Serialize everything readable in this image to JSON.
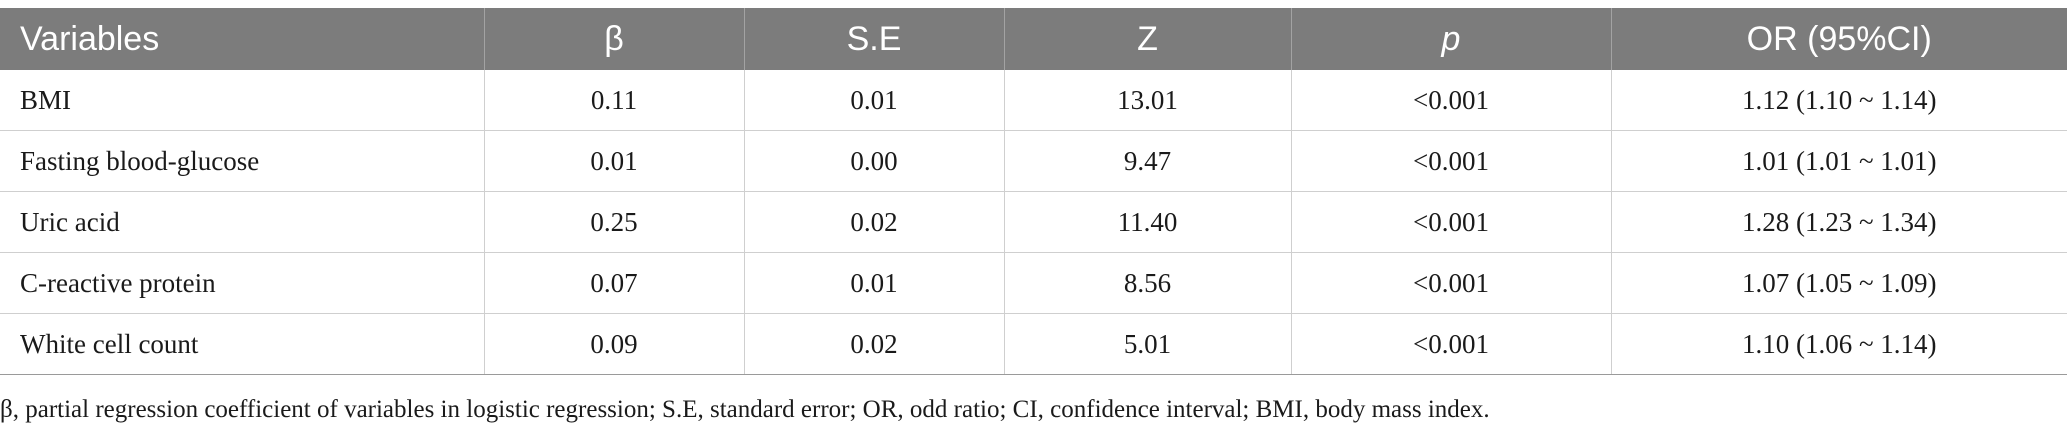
{
  "table": {
    "headers": [
      "Variables",
      "β",
      "S.E",
      "Z",
      "p",
      "OR (95%CI)"
    ],
    "rows": [
      [
        "BMI",
        "0.11",
        "0.01",
        "13.01",
        "<0.001",
        "1.12 (1.10 ~ 1.14)"
      ],
      [
        "Fasting blood-glucose",
        "0.01",
        "0.00",
        "9.47",
        "<0.001",
        "1.01 (1.01 ~ 1.01)"
      ],
      [
        "Uric acid",
        "0.25",
        "0.02",
        "11.40",
        "<0.001",
        "1.28 (1.23 ~ 1.34)"
      ],
      [
        "C-reactive protein",
        "0.07",
        "0.01",
        "8.56",
        "<0.001",
        "1.07 (1.05 ~ 1.09)"
      ],
      [
        "White cell count",
        "0.09",
        "0.02",
        "5.01",
        "<0.001",
        "1.10 (1.06 ~ 1.14)"
      ]
    ]
  },
  "footnote": "β, partial regression coefficient of variables in logistic regression; S.E, standard error; OR, odd ratio; CI, confidence interval; BMI, body mass index."
}
